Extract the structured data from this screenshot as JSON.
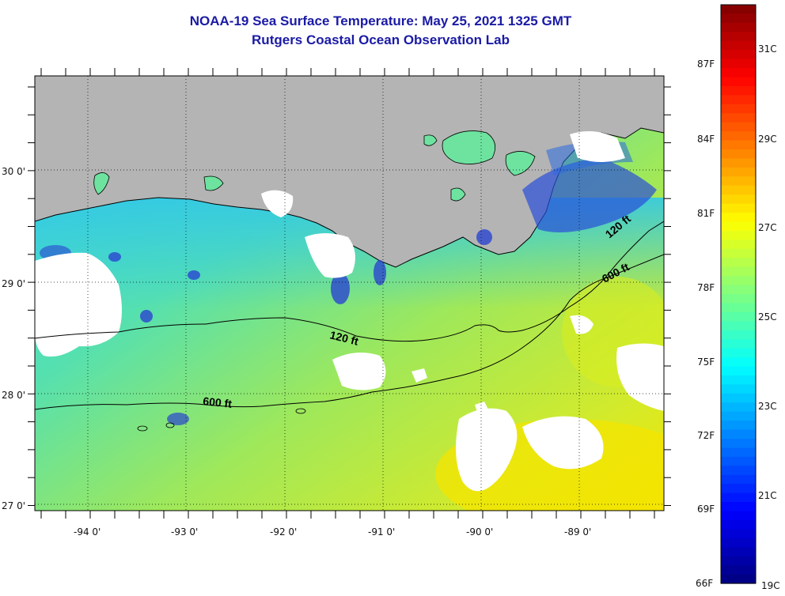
{
  "title": {
    "line1": "NOAA-19 Sea Surface Temperature:  May 25, 2021 1325 GMT",
    "line2": "Rutgers Coastal Ocean Observation Lab"
  },
  "map": {
    "longitude_labels": [
      "-94 0'",
      "-93 0'",
      "-92 0'",
      "-91 0'",
      "-90 0'",
      "-89 0'"
    ],
    "latitude_labels": [
      "30 0'",
      "29 0'",
      "28 0'",
      "27 0'"
    ],
    "contour_labels": [
      {
        "text": "120 ft",
        "angle": 14
      },
      {
        "text": "600 ft",
        "angle": -28
      },
      {
        "text": "120 ft",
        "angle": 10
      },
      {
        "text": "600 ft",
        "angle": 6
      }
    ],
    "colors": {
      "land": "#b4b4b4",
      "cloud": "#ffffff",
      "coast_line": "#000000"
    }
  },
  "colorbar": {
    "fahrenheit_labels": [
      "87F",
      "84F",
      "81F",
      "78F",
      "75F",
      "72F",
      "69F",
      "66F"
    ],
    "celsius_labels": [
      "31C",
      "29C",
      "27C",
      "25C",
      "23C",
      "21C",
      "19C"
    ],
    "range_celsius": [
      19,
      32.5
    ],
    "colormap": "jet"
  }
}
